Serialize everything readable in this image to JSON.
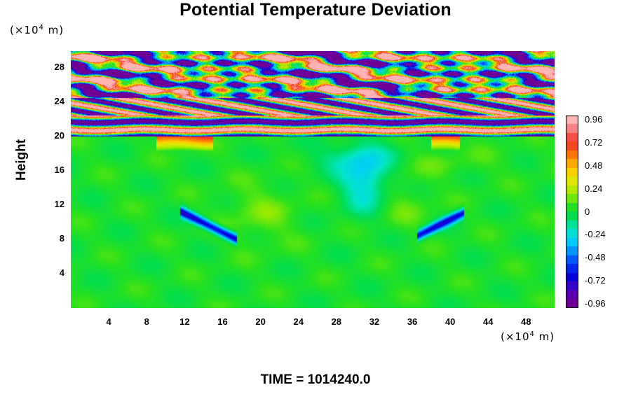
{
  "chart_data": {
    "type": "heatmap",
    "title": "Potential Temperature Deviation",
    "ylabel": "Height",
    "y_unit": "(×10⁴ m)",
    "x_unit": "(×10⁴ m)",
    "footer": "TIME = 1014240.0",
    "xlim": [
      0,
      51
    ],
    "ylim": [
      0,
      30
    ],
    "x_ticks": [
      "4",
      "8",
      "12",
      "16",
      "20",
      "24",
      "28",
      "32",
      "36",
      "40",
      "44",
      "48"
    ],
    "y_ticks": [
      "4",
      "8",
      "12",
      "16",
      "20",
      "24",
      "28"
    ],
    "x_tick_values": [
      4,
      8,
      12,
      16,
      20,
      24,
      28,
      32,
      36,
      40,
      44,
      48
    ],
    "y_tick_values": [
      4,
      8,
      12,
      16,
      20,
      24,
      28
    ],
    "colorbar": {
      "ticks": [
        "0.96",
        "0.72",
        "0.48",
        "0.24",
        "0",
        "-0.24",
        "-0.48",
        "-0.72",
        "-0.96"
      ],
      "range": [
        -0.96,
        0.96
      ]
    },
    "field_features": [
      {
        "feature": "near-zero background (green) below ~20"
      },
      {
        "feature": "alternating strong positive/negative layers above ~20 up to 30"
      },
      {
        "feature": "negative (blue) streak near x≈12-17, y≈7-10"
      },
      {
        "feature": "negative (blue) streak near x≈37-41, y≈8-11"
      },
      {
        "feature": "weak negative (cyan) patch near x≈29-33, y≈12-17"
      }
    ]
  },
  "colors": {
    "background": "#ffffff",
    "axis": "#000000"
  }
}
